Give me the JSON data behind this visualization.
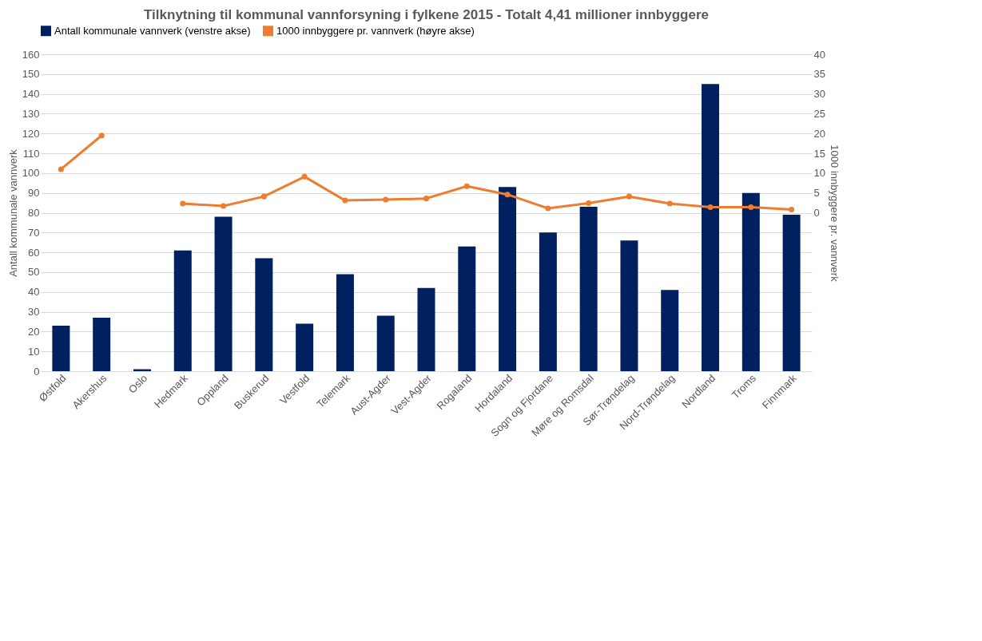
{
  "chart_data": {
    "type": "bar",
    "title": "Tilknytning til kommunal vannforsyning i fylkene 2015 - Totalt 4,41 millioner innbyggere",
    "categories": [
      "Østfold",
      "Akershus",
      "Oslo",
      "Hedmark",
      "Oppland",
      "Buskerud",
      "Vestfold",
      "Telemark",
      "Aust-Agder",
      "Vest-Agder",
      "Rogaland",
      "Hordaland",
      "Sogn og Fjordane",
      "Møre og Romsdal",
      "Sør-Trøndelag",
      "Nord-Trøndelag",
      "Nordland",
      "Troms",
      "Finnmark"
    ],
    "series": [
      {
        "name": "Antall kommunale vannverk (venstre akse)",
        "color": "#002060",
        "values": [
          23,
          27,
          1,
          61,
          78,
          57,
          24,
          49,
          28,
          42,
          63,
          93,
          70,
          83,
          66,
          41,
          145,
          90,
          79
        ]
      },
      {
        "name": "1000 innbyggere pr. vannverk (høyre akse)",
        "type": "line",
        "axis": "y2",
        "color": "#ed7d31",
        "values": [
          11,
          19.5,
          null,
          2.3,
          1.7,
          4.1,
          9.1,
          3.1,
          3.3,
          3.6,
          6.7,
          4.6,
          1.1,
          2.4,
          4.1,
          2.3,
          1.4,
          1.4,
          0.8
        ]
      }
    ],
    "ylabel": "Antall kommunale vannverk",
    "y2label": "1000 innbyggere pr. vannverk",
    "ylim": [
      0,
      160
    ],
    "yticks": [
      0,
      10,
      20,
      30,
      40,
      50,
      60,
      70,
      80,
      90,
      100,
      110,
      120,
      130,
      140,
      150,
      160
    ],
    "y2lim": [
      -40,
      40
    ],
    "y2ticks": [
      0,
      5,
      10,
      15,
      20,
      25,
      30,
      35,
      40
    ],
    "grid": "y",
    "legend": "top",
    "marker": "circle"
  }
}
